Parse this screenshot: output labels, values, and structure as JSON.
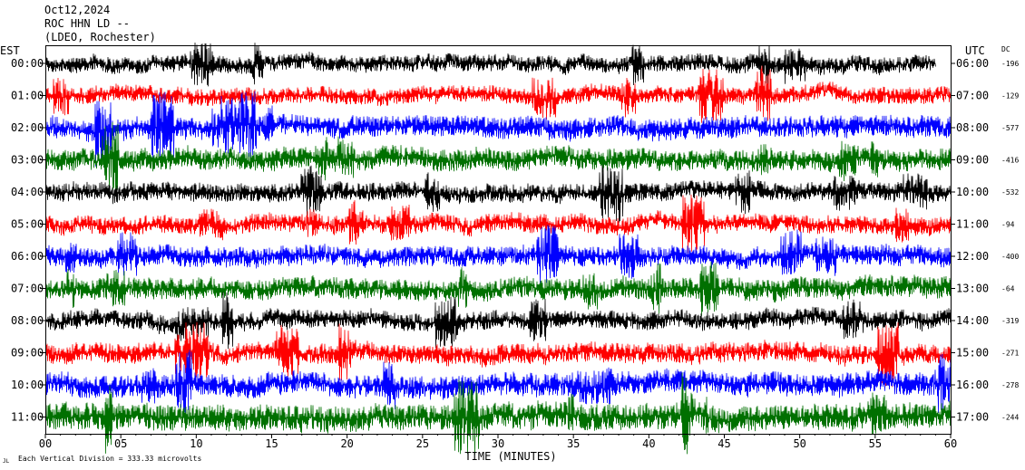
{
  "header": {
    "date": "Oct12,2024",
    "station": "ROC HHN LD --",
    "network": "(LDEO, Rochester)"
  },
  "chart_data": {
    "type": "line",
    "title": "",
    "left_axis_label": "EST",
    "right_axis_label": "UTC",
    "dc_label": "DC",
    "xlabel": "TIME (MINUTES)",
    "x_ticks": [
      "00",
      "05",
      "10",
      "15",
      "20",
      "25",
      "30",
      "35",
      "40",
      "45",
      "50",
      "55",
      "60"
    ],
    "xlim": [
      0,
      60
    ],
    "footer_note": "Each Vertical Division =  333.33 microvolts",
    "footer_mark": "JL",
    "color_cycle": [
      "#000000",
      "#ff0000",
      "#0000ff",
      "#007000"
    ],
    "rows": [
      {
        "est": "00:00",
        "utc": "06:00",
        "dc": "-196",
        "end_minute": 59,
        "amplitude": 1.0
      },
      {
        "est": "01:00",
        "utc": "07:00",
        "dc": "-129",
        "end_minute": 60,
        "amplitude": 1.0
      },
      {
        "est": "02:00",
        "utc": "08:00",
        "dc": "-577",
        "end_minute": 60,
        "amplitude": 1.3
      },
      {
        "est": "03:00",
        "utc": "09:00",
        "dc": "-416",
        "end_minute": 60,
        "amplitude": 1.3
      },
      {
        "est": "04:00",
        "utc": "10:00",
        "dc": "-532",
        "end_minute": 60,
        "amplitude": 1.1
      },
      {
        "est": "05:00",
        "utc": "11:00",
        "dc": "-94",
        "end_minute": 60,
        "amplitude": 1.1
      },
      {
        "est": "06:00",
        "utc": "12:00",
        "dc": "-400",
        "end_minute": 60,
        "amplitude": 1.2
      },
      {
        "est": "07:00",
        "utc": "13:00",
        "dc": "-64",
        "end_minute": 60,
        "amplitude": 1.3
      },
      {
        "est": "08:00",
        "utc": "14:00",
        "dc": "-319",
        "end_minute": 60,
        "amplitude": 1.1
      },
      {
        "est": "09:00",
        "utc": "15:00",
        "dc": "-271",
        "end_minute": 60,
        "amplitude": 1.2
      },
      {
        "est": "10:00",
        "utc": "16:00",
        "dc": "-278",
        "end_minute": 60,
        "amplitude": 1.4
      },
      {
        "est": "11:00",
        "utc": "17:00",
        "dc": "-244",
        "end_minute": 60,
        "amplitude": 1.6
      }
    ]
  }
}
